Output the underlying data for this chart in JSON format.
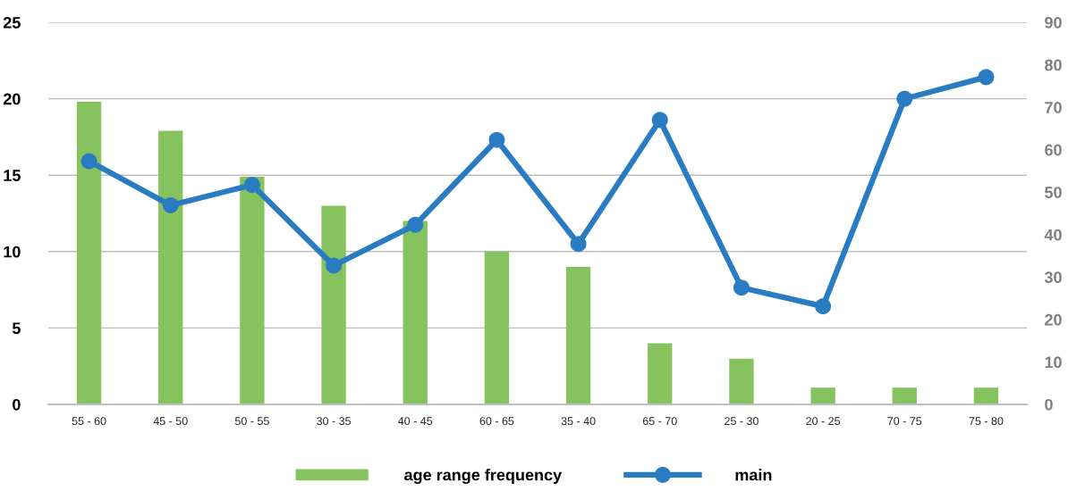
{
  "chart_data": {
    "type": "bar",
    "categories": [
      "55 - 60",
      "45 - 50",
      "50 - 55",
      "30 - 35",
      "40 - 45",
      "60 - 65",
      "35 - 40",
      "65 - 70",
      "25 - 30",
      "20 - 25",
      "70 - 75",
      "75 - 80"
    ],
    "series": [
      {
        "name": "age range frequency",
        "color": "#86c35e",
        "values": [
          19.8,
          17.9,
          14.9,
          13,
          12,
          10,
          9,
          4,
          3,
          1.1,
          1.1,
          1.1
        ]
      },
      {
        "name": "main",
        "type": "line",
        "axis": "y2",
        "color": "#2a7cc2",
        "marker": "circle",
        "line_style": "solid",
        "values": [
          57.3,
          46.9,
          51.7,
          32.7,
          42.3,
          62.3,
          37.8,
          67.0,
          27.5,
          23.1,
          72.0,
          77.1
        ]
      }
    ],
    "ylim": [
      0,
      25
    ],
    "yticks": [
      0,
      5,
      10,
      15,
      20,
      25
    ],
    "y2lim": [
      0,
      90
    ],
    "y2ticks": [
      0,
      10,
      20,
      30,
      40,
      50,
      60,
      70,
      80,
      90
    ],
    "grid": "y",
    "legend": "bottom"
  }
}
